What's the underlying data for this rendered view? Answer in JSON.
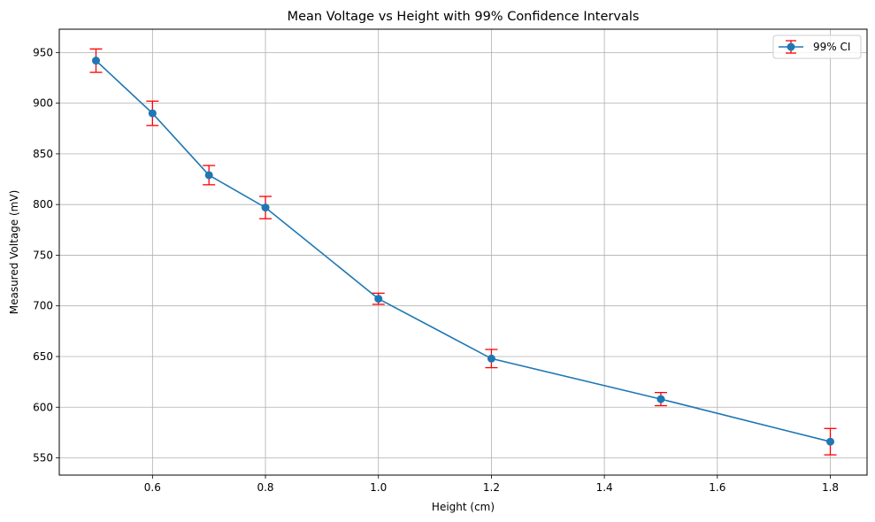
{
  "chart_data": {
    "type": "line",
    "title": "Mean Voltage vs Height with 99% Confidence Intervals",
    "xlabel": "Height (cm)",
    "ylabel": "Measured Voltage (mV)",
    "xlim": [
      0.435,
      1.865
    ],
    "ylim": [
      533,
      973
    ],
    "x_ticks": [
      0.6,
      0.8,
      1.0,
      1.2,
      1.4,
      1.6,
      1.8
    ],
    "x_tick_labels": [
      "0.6",
      "0.8",
      "1.0",
      "1.2",
      "1.4",
      "1.6",
      "1.8"
    ],
    "y_ticks": [
      550,
      600,
      650,
      700,
      750,
      800,
      850,
      900,
      950
    ],
    "y_tick_labels": [
      "550",
      "600",
      "650",
      "700",
      "750",
      "800",
      "850",
      "900",
      "950"
    ],
    "grid": true,
    "legend_position": "top-right",
    "series": [
      {
        "name": "99% CI",
        "line_color": "#1f77b4",
        "marker_color": "#1f77b4",
        "errorbar_color": "#ff0000",
        "x": [
          0.5,
          0.6,
          0.7,
          0.8,
          1.0,
          1.2,
          1.5,
          1.8
        ],
        "y": [
          942,
          890,
          829,
          797,
          707,
          648,
          608,
          566
        ],
        "error": [
          11.5,
          12,
          9.5,
          11,
          5.5,
          9,
          6.5,
          13
        ]
      }
    ]
  }
}
